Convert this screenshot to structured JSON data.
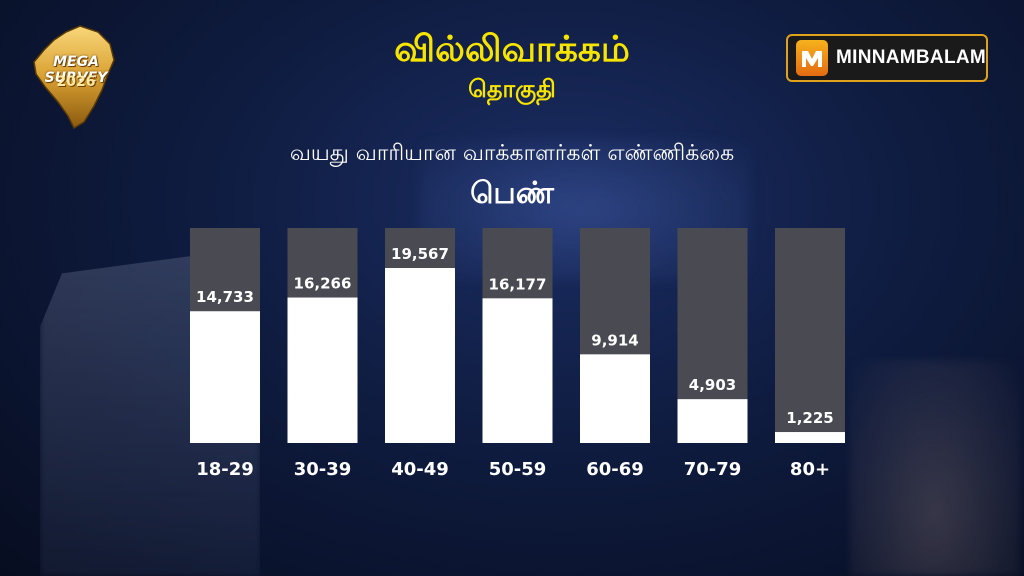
{
  "header": {
    "title": "வில்லிவாக்கம்",
    "subtitle": "தொகுதி"
  },
  "logo": {
    "line1": "MEGA SURVEY",
    "line2": "2026"
  },
  "brand": {
    "name": "MINNAMBALAM",
    "color": "#f7b21c"
  },
  "chart_data": {
    "type": "bar",
    "title": "வயது வாரியான வாக்காளர்கள் எண்ணிக்கை",
    "subtitle": "பெண்",
    "categories": [
      "18-29",
      "30-39",
      "40-49",
      "50-59",
      "60-69",
      "70-79",
      "80+"
    ],
    "values": [
      14733,
      16266,
      19567,
      16177,
      9914,
      4903,
      1225
    ],
    "value_labels": [
      "14,733",
      "16,266",
      "19,567",
      "16,177",
      "9,914",
      "4,903",
      "1,225"
    ],
    "ylim": [
      0,
      19567
    ],
    "grid": false,
    "legend": "none",
    "colors": {
      "bar": "#ffffff",
      "track": "#4a4a52",
      "label": "#ffffff"
    }
  }
}
